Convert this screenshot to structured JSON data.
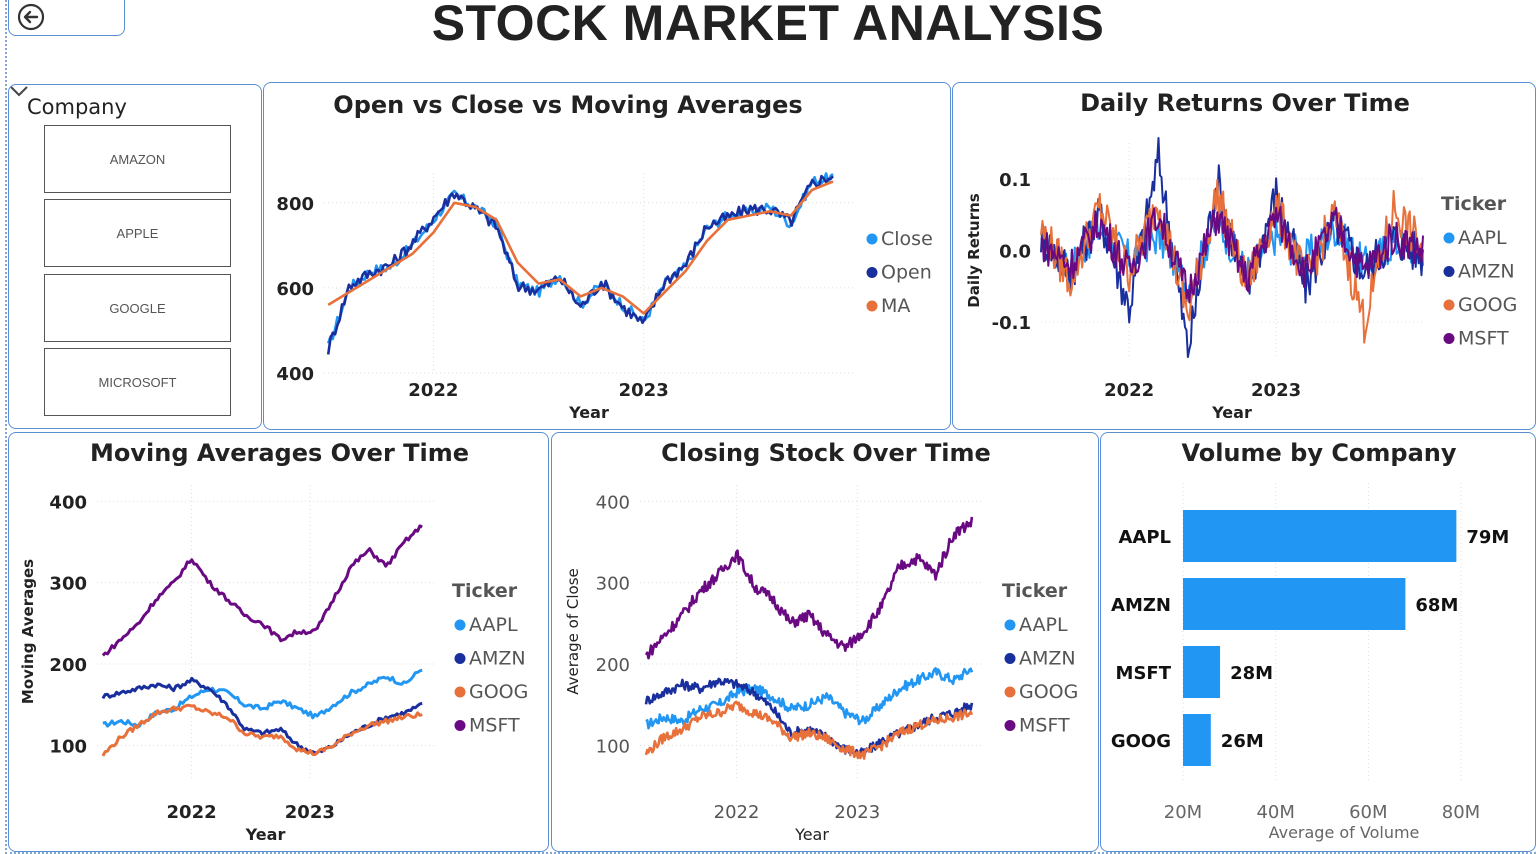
{
  "page": {
    "title": "STOCK MARKET ANALYSIS",
    "back_icon": "back-arrow-icon"
  },
  "slicer": {
    "header": "Company",
    "chevron_icon": "chevron-down-icon",
    "options": [
      "AMAZON",
      "APPLE",
      "GOOGLE",
      "MICROSOFT"
    ]
  },
  "colors": {
    "AAPL": "#2196f3",
    "AMZN": "#1a2f9e",
    "GOOG": "#e8703a",
    "MSFT": "#6a0a82",
    "accent": "#5b8fd4"
  },
  "chart_data": [
    {
      "id": "open-close-ma",
      "type": "line",
      "title": "Open vs Close vs Moving Averages",
      "xlabel": "Year",
      "ylabel": "",
      "x_ticks": [
        "2022",
        "2023"
      ],
      "y_ticks": [
        400,
        600,
        800
      ],
      "ylim": [
        400,
        870
      ],
      "grid": true,
      "legend_position": "right",
      "series": [
        {
          "name": "Close",
          "color": "#2196f3",
          "x": [
            2021.5,
            2021.6,
            2021.7,
            2021.8,
            2021.9,
            2022.0,
            2022.1,
            2022.2,
            2022.3,
            2022.4,
            2022.5,
            2022.6,
            2022.7,
            2022.8,
            2022.9,
            2023.0,
            2023.1,
            2023.2,
            2023.3,
            2023.4,
            2023.5,
            2023.6,
            2023.7,
            2023.8,
            2023.9
          ],
          "values": [
            460,
            600,
            640,
            650,
            700,
            760,
            820,
            790,
            750,
            610,
            590,
            630,
            560,
            610,
            560,
            520,
            610,
            650,
            740,
            770,
            780,
            790,
            750,
            850,
            860
          ]
        },
        {
          "name": "Open",
          "color": "#1a2f9e",
          "x": [
            2021.5,
            2021.6,
            2021.7,
            2021.8,
            2021.9,
            2022.0,
            2022.1,
            2022.2,
            2022.3,
            2022.4,
            2022.5,
            2022.6,
            2022.7,
            2022.8,
            2022.9,
            2023.0,
            2023.1,
            2023.2,
            2023.3,
            2023.4,
            2023.5,
            2023.6,
            2023.7,
            2023.8,
            2023.9
          ],
          "values": [
            455,
            605,
            635,
            655,
            705,
            765,
            825,
            785,
            745,
            605,
            595,
            625,
            555,
            615,
            555,
            515,
            615,
            655,
            745,
            765,
            785,
            785,
            755,
            845,
            865
          ]
        },
        {
          "name": "MA",
          "color": "#e8703a",
          "x": [
            2021.5,
            2021.6,
            2021.7,
            2021.8,
            2021.9,
            2022.0,
            2022.1,
            2022.2,
            2022.3,
            2022.4,
            2022.5,
            2022.6,
            2022.7,
            2022.8,
            2022.9,
            2023.0,
            2023.1,
            2023.2,
            2023.3,
            2023.4,
            2023.5,
            2023.6,
            2023.7,
            2023.8,
            2023.9
          ],
          "values": [
            560,
            590,
            620,
            650,
            680,
            730,
            800,
            790,
            760,
            660,
            610,
            620,
            580,
            600,
            580,
            540,
            590,
            640,
            710,
            760,
            770,
            780,
            770,
            830,
            850
          ]
        }
      ]
    },
    {
      "id": "daily-returns",
      "type": "line",
      "title": "Daily Returns Over Time",
      "xlabel": "Year",
      "ylabel": "Daily Returns",
      "x_ticks": [
        "2022",
        "2023"
      ],
      "y_ticks": [
        -0.1,
        0.0,
        0.1
      ],
      "ylim": [
        -0.15,
        0.15
      ],
      "grid": true,
      "legend_title": "Ticker",
      "legend_position": "right",
      "series_names": [
        "AAPL",
        "AMZN",
        "GOOG",
        "MSFT"
      ],
      "series": [
        {
          "name": "AAPL",
          "color": "#2196f3",
          "x": [
            2021.4,
            2021.6,
            2021.8,
            2022.0,
            2022.2,
            2022.4,
            2022.6,
            2022.8,
            2023.0,
            2023.2,
            2023.4,
            2023.6,
            2023.8,
            2024.0
          ],
          "values": [
            0.01,
            -0.02,
            0.03,
            -0.01,
            0.02,
            -0.05,
            0.04,
            -0.03,
            0.02,
            -0.01,
            0.03,
            -0.02,
            0.01,
            0.0
          ]
        },
        {
          "name": "AMZN",
          "color": "#1a2f9e",
          "x": [
            2021.4,
            2021.6,
            2021.8,
            2022.0,
            2022.2,
            2022.4,
            2022.6,
            2022.8,
            2023.0,
            2023.2,
            2023.4,
            2023.6,
            2023.8,
            2024.0
          ],
          "values": [
            0.02,
            -0.03,
            0.05,
            -0.08,
            0.13,
            -0.14,
            0.1,
            -0.06,
            0.08,
            -0.05,
            0.04,
            -0.03,
            0.02,
            -0.01
          ]
        },
        {
          "name": "GOOG",
          "color": "#e8703a",
          "x": [
            2021.4,
            2021.6,
            2021.8,
            2022.0,
            2022.2,
            2022.4,
            2022.6,
            2022.8,
            2023.0,
            2023.2,
            2023.4,
            2023.6,
            2023.8,
            2024.0
          ],
          "values": [
            0.03,
            -0.04,
            0.06,
            -0.03,
            0.07,
            -0.09,
            0.08,
            -0.05,
            0.06,
            -0.04,
            0.05,
            -0.1,
            0.06,
            0.0
          ]
        },
        {
          "name": "MSFT",
          "color": "#6a0a82",
          "x": [
            2021.4,
            2021.6,
            2021.8,
            2022.0,
            2022.2,
            2022.4,
            2022.6,
            2022.8,
            2023.0,
            2023.2,
            2023.4,
            2023.6,
            2023.8,
            2024.0
          ],
          "values": [
            0.01,
            -0.02,
            0.04,
            -0.03,
            0.05,
            -0.06,
            0.05,
            -0.04,
            0.05,
            -0.03,
            0.04,
            -0.03,
            0.02,
            0.0
          ]
        }
      ]
    },
    {
      "id": "moving-averages",
      "type": "line",
      "title": "Moving Averages Over Time",
      "xlabel": "Year",
      "ylabel": "Moving Averages",
      "x_ticks": [
        "2022",
        "2023"
      ],
      "y_ticks": [
        100,
        200,
        300,
        400
      ],
      "ylim": [
        60,
        420
      ],
      "grid": true,
      "legend_title": "Ticker",
      "legend_position": "right",
      "series": [
        {
          "name": "AAPL",
          "color": "#2196f3",
          "x": [
            2021.25,
            2021.4,
            2021.55,
            2021.7,
            2021.85,
            2022.0,
            2022.15,
            2022.3,
            2022.45,
            2022.6,
            2022.75,
            2022.9,
            2023.05,
            2023.2,
            2023.35,
            2023.5,
            2023.65,
            2023.8,
            2023.95
          ],
          "values": [
            125,
            130,
            125,
            140,
            145,
            160,
            170,
            165,
            150,
            145,
            155,
            145,
            135,
            150,
            165,
            175,
            185,
            175,
            195
          ]
        },
        {
          "name": "AMZN",
          "color": "#1a2f9e",
          "x": [
            2021.25,
            2021.4,
            2021.55,
            2021.7,
            2021.85,
            2022.0,
            2022.15,
            2022.3,
            2022.45,
            2022.6,
            2022.75,
            2022.9,
            2023.05,
            2023.2,
            2023.35,
            2023.5,
            2023.65,
            2023.8,
            2023.95
          ],
          "values": [
            160,
            165,
            170,
            175,
            170,
            180,
            170,
            150,
            120,
            115,
            120,
            100,
            90,
            100,
            115,
            125,
            135,
            140,
            150
          ]
        },
        {
          "name": "GOOG",
          "color": "#e8703a",
          "x": [
            2021.25,
            2021.4,
            2021.55,
            2021.7,
            2021.85,
            2022.0,
            2022.15,
            2022.3,
            2022.45,
            2022.6,
            2022.75,
            2022.9,
            2023.05,
            2023.2,
            2023.35,
            2023.5,
            2023.65,
            2023.8,
            2023.95
          ],
          "values": [
            88,
            110,
            125,
            140,
            145,
            148,
            140,
            135,
            115,
            110,
            112,
            95,
            90,
            100,
            115,
            125,
            130,
            135,
            138
          ]
        },
        {
          "name": "MSFT",
          "color": "#6a0a82",
          "x": [
            2021.25,
            2021.4,
            2021.55,
            2021.7,
            2021.85,
            2022.0,
            2022.15,
            2022.3,
            2022.45,
            2022.6,
            2022.75,
            2022.9,
            2023.05,
            2023.2,
            2023.35,
            2023.5,
            2023.65,
            2023.8,
            2023.95
          ],
          "values": [
            210,
            230,
            250,
            280,
            300,
            330,
            300,
            280,
            260,
            250,
            230,
            240,
            240,
            280,
            320,
            340,
            320,
            350,
            370
          ]
        }
      ]
    },
    {
      "id": "closing-stock",
      "type": "line",
      "title": "Closing Stock Over Time",
      "xlabel": "Year",
      "ylabel": "Average of Close",
      "x_ticks": [
        "2022",
        "2023"
      ],
      "y_ticks": [
        100,
        200,
        300,
        400
      ],
      "ylim": [
        60,
        420
      ],
      "grid": true,
      "legend_title": "Ticker",
      "legend_position": "right",
      "series": [
        {
          "name": "AAPL",
          "color": "#2196f3",
          "x": [
            2021.25,
            2021.4,
            2021.55,
            2021.7,
            2021.85,
            2022.0,
            2022.15,
            2022.3,
            2022.45,
            2022.6,
            2022.75,
            2022.9,
            2023.05,
            2023.2,
            2023.35,
            2023.5,
            2023.65,
            2023.8,
            2023.95
          ],
          "values": [
            125,
            135,
            130,
            145,
            150,
            165,
            170,
            160,
            145,
            150,
            160,
            140,
            130,
            150,
            170,
            180,
            190,
            180,
            195
          ]
        },
        {
          "name": "AMZN",
          "color": "#1a2f9e",
          "x": [
            2021.25,
            2021.4,
            2021.55,
            2021.7,
            2021.85,
            2022.0,
            2022.15,
            2022.3,
            2022.45,
            2022.6,
            2022.75,
            2022.9,
            2023.05,
            2023.2,
            2023.35,
            2023.5,
            2023.65,
            2023.8,
            2023.95
          ],
          "values": [
            155,
            165,
            175,
            170,
            180,
            175,
            165,
            145,
            115,
            120,
            110,
            95,
            90,
            105,
            115,
            125,
            135,
            140,
            150
          ]
        },
        {
          "name": "GOOG",
          "color": "#e8703a",
          "x": [
            2021.25,
            2021.4,
            2021.55,
            2021.7,
            2021.85,
            2022.0,
            2022.15,
            2022.3,
            2022.45,
            2022.6,
            2022.75,
            2022.9,
            2023.05,
            2023.2,
            2023.35,
            2023.5,
            2023.65,
            2023.8,
            2023.95
          ],
          "values": [
            90,
            110,
            120,
            135,
            140,
            150,
            140,
            130,
            110,
            115,
            108,
            95,
            88,
            100,
            115,
            125,
            130,
            135,
            140
          ]
        },
        {
          "name": "MSFT",
          "color": "#6a0a82",
          "x": [
            2021.25,
            2021.4,
            2021.55,
            2021.7,
            2021.85,
            2022.0,
            2022.15,
            2022.3,
            2022.45,
            2022.6,
            2022.75,
            2022.9,
            2023.05,
            2023.2,
            2023.35,
            2023.5,
            2023.65,
            2023.8,
            2023.95
          ],
          "values": [
            210,
            235,
            260,
            290,
            310,
            335,
            295,
            280,
            250,
            260,
            235,
            220,
            240,
            270,
            320,
            330,
            310,
            360,
            375
          ]
        }
      ]
    },
    {
      "id": "volume-by-company",
      "type": "bar",
      "orientation": "horizontal",
      "title": "Volume by Company",
      "xlabel": "Average of Volume",
      "ylabel": "",
      "categories": [
        "AAPL",
        "AMZN",
        "MSFT",
        "GOOG"
      ],
      "values": [
        79,
        68,
        28,
        26
      ],
      "value_labels": [
        "79M",
        "68M",
        "28M",
        "26M"
      ],
      "x_ticks": [
        "20M",
        "40M",
        "60M",
        "80M"
      ],
      "xlim": [
        20,
        80
      ],
      "color": "#2196f3"
    }
  ]
}
